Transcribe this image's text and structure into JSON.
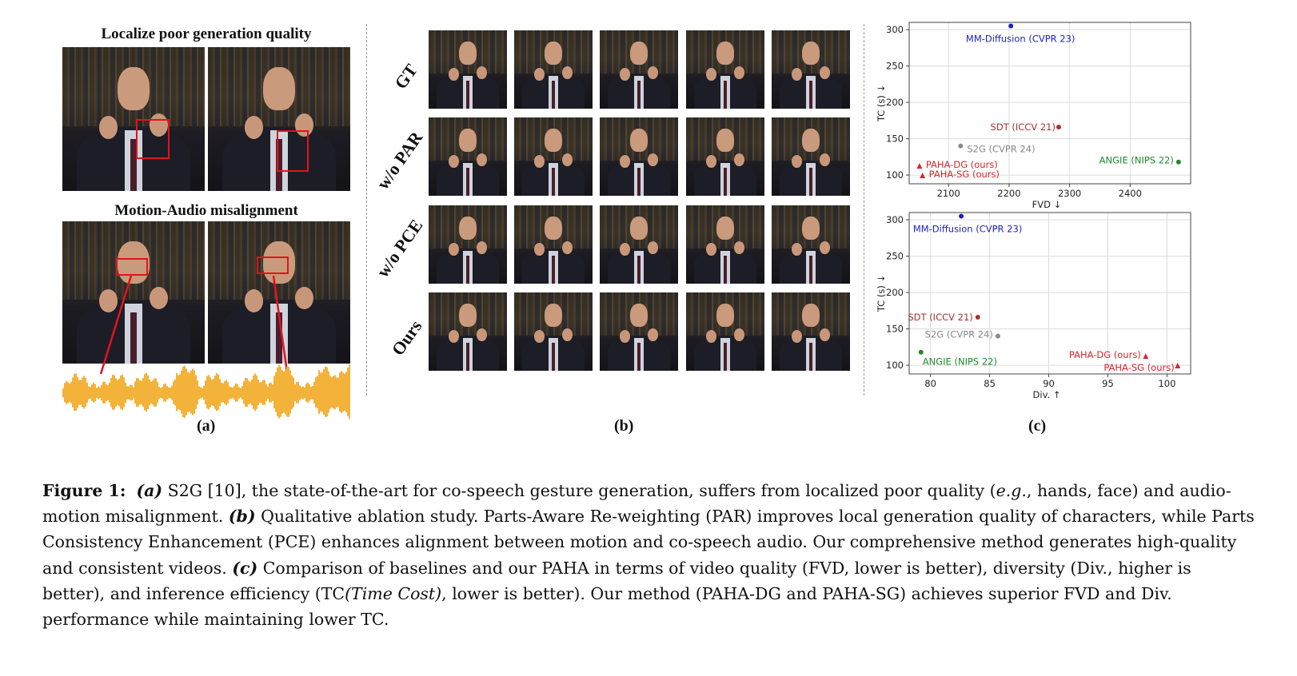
{
  "panel_a": {
    "title_top": "Localize poor generation quality",
    "title_bottom": "Motion-Audio misalignment",
    "label": "(a)",
    "waveform_color": "#f3b23a",
    "highlight_color": "#e0141d"
  },
  "panel_b": {
    "rows": [
      "GT",
      "w/o PAR",
      "w/o PCE",
      "Ours"
    ],
    "label": "(b)"
  },
  "panel_c": {
    "label": "(c)"
  },
  "chart_data": [
    {
      "type": "scatter",
      "xlabel": "FVD",
      "ylabel": "TC (s)",
      "x_arrow": "↓",
      "y_arrow": "↓",
      "xlim": [
        2035,
        2500
      ],
      "ylim": [
        88,
        310
      ],
      "xticks": [
        2100,
        2200,
        2300,
        2400
      ],
      "yticks": [
        100,
        150,
        200,
        250,
        300
      ],
      "grid": true,
      "points": [
        {
          "name": "MM-Diffusion (CVPR 23)",
          "x": 2203,
          "y": 305,
          "color": "#1f1fc4",
          "marker": "circle"
        },
        {
          "name": "SDT (ICCV 21)",
          "x": 2282,
          "y": 166,
          "color": "#a83232",
          "marker": "circle"
        },
        {
          "name": "S2G (CVPR 24)",
          "x": 2120,
          "y": 140,
          "color": "#888888",
          "marker": "circle"
        },
        {
          "name": "ANGIE (NIPS 22)",
          "x": 2480,
          "y": 118,
          "color": "#1f8a2a",
          "marker": "circle"
        },
        {
          "name": "PAHA-DG (ours)",
          "x": 2052,
          "y": 112,
          "color": "#d9262c",
          "marker": "triangle"
        },
        {
          "name": "PAHA-SG (ours)",
          "x": 2057,
          "y": 99,
          "color": "#d9262c",
          "marker": "triangle"
        }
      ]
    },
    {
      "type": "scatter",
      "xlabel": "Div.",
      "ylabel": "TC (s)",
      "x_arrow": "↑",
      "y_arrow": "↓",
      "xlim": [
        78.2,
        102
      ],
      "ylim": [
        88,
        310
      ],
      "xticks": [
        80,
        85,
        90,
        95,
        100
      ],
      "yticks": [
        100,
        150,
        200,
        250,
        300
      ],
      "grid": true,
      "points": [
        {
          "name": "MM-Diffusion (CVPR 23)",
          "x": 82.6,
          "y": 305,
          "color": "#1f1fc4",
          "marker": "circle"
        },
        {
          "name": "SDT (ICCV 21)",
          "x": 84.0,
          "y": 166,
          "color": "#a83232",
          "marker": "circle"
        },
        {
          "name": "S2G (CVPR 24)",
          "x": 85.7,
          "y": 140,
          "color": "#888888",
          "marker": "circle"
        },
        {
          "name": "ANGIE (NIPS 22)",
          "x": 79.2,
          "y": 118,
          "color": "#1f8a2a",
          "marker": "circle"
        },
        {
          "name": "PAHA-DG (ours)",
          "x": 98.2,
          "y": 112,
          "color": "#d9262c",
          "marker": "triangle"
        },
        {
          "name": "PAHA-SG (ours)",
          "x": 100.9,
          "y": 99,
          "color": "#d9262c",
          "marker": "triangle"
        }
      ]
    }
  ],
  "caption": {
    "fig": "Figure 1:",
    "a_tag": "(a)",
    "a_text": " S2G [10], the state-of-the-art for co-speech gesture generation, suffers from localized poor quality (",
    "eg": "e.g.",
    "a_text2": ", hands, face) and audio-motion misalignment. ",
    "b_tag": "(b)",
    "b_text": " Qualitative ablation study. Parts-Aware Re-weighting (PAR) improves local generation quality of characters, while Parts Consistency Enhancement (PCE) enhances alignment between motion and co-speech audio. Our comprehensive method generates high-quality and consistent videos. ",
    "c_tag": "(c)",
    "c_text": " Comparison of baselines and our PAHA in terms of video quality (FVD, lower is better), diversity (Div., higher is better), and inference efficiency (TC",
    "tc_italic": "(Time Cost)",
    "c_text2": ", lower is better). Our method (PAHA-DG and PAHA-SG) achieves superior FVD and Div. performance while maintaining lower TC."
  }
}
